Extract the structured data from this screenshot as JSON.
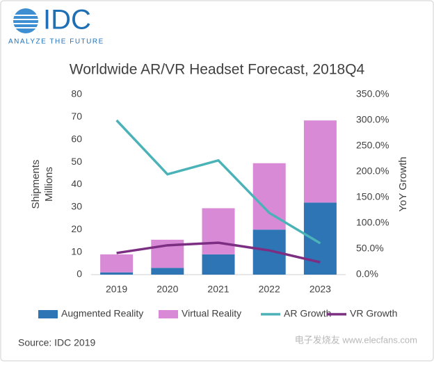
{
  "logo": {
    "name": "IDC",
    "tagline": "ANALYZE THE FUTURE"
  },
  "source": "Source: IDC 2019",
  "watermark": "电子发烧友 www.elecfans.com",
  "chart_data": {
    "type": "bar",
    "stacked": true,
    "title": "Worldwide AR/VR Headset Forecast, 2018Q4",
    "ylabel": [
      "Shipments",
      "Millions"
    ],
    "y2label": "YoY Growth",
    "categories": [
      "2019",
      "2020",
      "2021",
      "2022",
      "2023"
    ],
    "series": [
      {
        "name": "Augmented Reality",
        "color": "#2e75b6",
        "values": [
          1,
          3,
          9,
          20,
          32
        ]
      },
      {
        "name": "Virtual Reality",
        "color": "#d98ad6",
        "values": [
          8,
          12.5,
          20.5,
          29.5,
          36.5
        ]
      },
      {
        "name": "AR Growth",
        "type": "line",
        "axis": "y2",
        "color": "#4bb3b8",
        "values": [
          300,
          195,
          222,
          120,
          61
        ]
      },
      {
        "name": "VR Growth",
        "type": "line",
        "axis": "y2",
        "color": "#7b2e82",
        "values": [
          42,
          57,
          62,
          47,
          24
        ]
      }
    ],
    "ylim": [
      0,
      80
    ],
    "yticks": [
      0,
      10,
      20,
      30,
      40,
      50,
      60,
      70,
      80
    ],
    "y2lim": [
      0,
      350
    ],
    "y2ticks": [
      {
        "value": 0,
        "label": "0.0%"
      },
      {
        "value": 50,
        "label": "50.0%"
      },
      {
        "value": 100,
        "label": "100.0%"
      },
      {
        "value": 150,
        "label": "150.0%"
      },
      {
        "value": 200,
        "label": "200.0%"
      },
      {
        "value": 250,
        "label": "250.0%"
      },
      {
        "value": 300,
        "label": "300.0%"
      },
      {
        "value": 350,
        "label": "350.0%"
      }
    ],
    "legend": "bottom",
    "grid": false
  }
}
